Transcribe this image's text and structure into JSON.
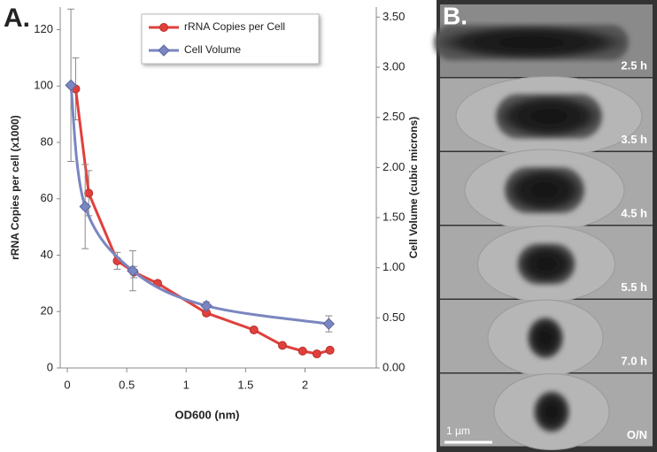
{
  "chart_data": {
    "type": "line",
    "panel_label": "A.",
    "x_label": "OD600 (nm)",
    "y_label": "rRNA Copies per cell (x1000)",
    "y2_label": "Cell Volume (cubic microns)",
    "xlim": [
      -0.06,
      2.6
    ],
    "xticks": [
      0,
      0.5,
      1,
      1.5,
      2
    ],
    "ylim": [
      0,
      128
    ],
    "yticks": [
      0,
      20,
      40,
      60,
      80,
      100,
      120
    ],
    "y2lim": [
      0,
      3.6
    ],
    "y2ticks": [
      {
        "value": 0,
        "label": "0.00"
      },
      {
        "value": 0.5,
        "label": "0.50"
      },
      {
        "value": 1,
        "label": "1.00"
      },
      {
        "value": 1.5,
        "label": "1.50"
      },
      {
        "value": 2,
        "label": "2.00"
      },
      {
        "value": 2.5,
        "label": "2.50"
      },
      {
        "value": 3,
        "label": "3.00"
      },
      {
        "value": 3.5,
        "label": "3.50"
      }
    ],
    "legend": "top",
    "series": [
      {
        "name": "rRNA Copies per Cell",
        "color": "#e0403c",
        "marker": "circle",
        "smooth": false,
        "x": [
          0.07,
          0.18,
          0.42,
          0.56,
          0.76,
          1.17,
          1.57,
          1.81,
          1.98,
          2.1,
          2.21
        ],
        "values": [
          99,
          62,
          38,
          34,
          30,
          19.5,
          13.5,
          8,
          6,
          5,
          6.3
        ],
        "errors": [
          11,
          8,
          3,
          2,
          1,
          1,
          0.5,
          0.5,
          0.5,
          0.5,
          0.5
        ]
      },
      {
        "name": "Cell Volume",
        "color": "#7a86bf",
        "marker": "diamond",
        "smooth": true,
        "axis": "y2",
        "x": [
          0.03,
          0.15,
          0.55,
          1.17,
          2.2
        ],
        "values": [
          2.82,
          1.61,
          0.97,
          0.62,
          0.44
        ],
        "errors": [
          0.76,
          0.42,
          0.2,
          0.04,
          0.08
        ]
      }
    ]
  },
  "micrographs": {
    "panel_label": "B.",
    "frames": [
      "2.5 h",
      "3.5 h",
      "4.5 h",
      "5.5 h",
      "7.0 h",
      "O/N"
    ],
    "scale_bar": "1 µm"
  }
}
